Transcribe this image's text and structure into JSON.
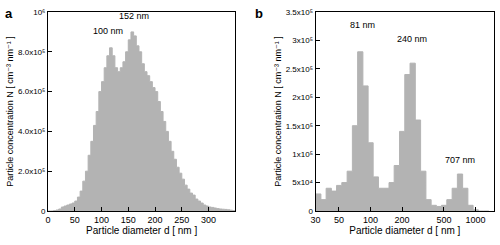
{
  "chart_data": [
    {
      "type": "histogram",
      "title": "a",
      "x_label": "Particle diameter d [ nm ]",
      "y_label": "Particle concentration N [ cm⁻³ nm⁻¹ ]",
      "color": "#b3b3b3",
      "bins": [
        0,
        5,
        10,
        15,
        20,
        25,
        30,
        35,
        40,
        45,
        50,
        55,
        60,
        65,
        70,
        75,
        80,
        85,
        90,
        95,
        100,
        105,
        110,
        115,
        120,
        125,
        130,
        135,
        140,
        145,
        150,
        155,
        160,
        165,
        170,
        175,
        180,
        185,
        190,
        195,
        200,
        205,
        210,
        215,
        220,
        225,
        230,
        235,
        240,
        245,
        250,
        255,
        260,
        265,
        270,
        275,
        280,
        285,
        290,
        295,
        300,
        305,
        310,
        315,
        320,
        325,
        330,
        335,
        340,
        345,
        350
      ],
      "counts": [
        0,
        0,
        2000,
        5000,
        10000,
        20000,
        25000,
        30000,
        35000,
        40000,
        50000,
        70000,
        100000,
        150000,
        200000,
        280000,
        350000,
        430000,
        500000,
        600000,
        650000,
        720000,
        780000,
        820000,
        780000,
        720000,
        700000,
        720000,
        750000,
        800000,
        860000,
        900000,
        880000,
        830000,
        800000,
        740000,
        700000,
        680000,
        650000,
        620000,
        600000,
        550000,
        500000,
        450000,
        400000,
        350000,
        300000,
        260000,
        220000,
        190000,
        160000,
        130000,
        110000,
        90000,
        80000,
        60000,
        50000,
        40000,
        30000,
        25000,
        20000,
        18000,
        15000,
        12000,
        10000,
        9000,
        8000,
        6000,
        4000,
        2000
      ],
      "xlim": [
        0,
        350
      ],
      "xticks": [
        0,
        50,
        100,
        150,
        200,
        250,
        300
      ],
      "ylim": [
        0,
        1000000
      ],
      "yticks": [
        0,
        {
          "value": 200000,
          "label": "2.0x10⁵"
        },
        {
          "value": 400000,
          "label": "4.0x10⁵"
        },
        {
          "value": 600000,
          "label": "6.0x10⁵"
        },
        {
          "value": 800000,
          "label": "8.0x10⁵"
        },
        {
          "value": 1000000,
          "label": "10⁶"
        }
      ],
      "grid": false,
      "annotations": [
        {
          "text": "100 nm",
          "x": 112,
          "y": 870000
        },
        {
          "text": "152 nm",
          "x": 160,
          "y": 945000
        }
      ]
    },
    {
      "type": "histogram",
      "title": "b",
      "x_label": "Particle diameter d [ nm ]",
      "y_label": "Particle concentration N [ cm⁻³ nm⁻¹ ]",
      "color": "#b3b3b3",
      "log": "x",
      "bins": [
        30,
        33.7,
        37.8,
        42.4,
        47.5,
        53.3,
        59.9,
        67.2,
        75.4,
        84.6,
        94.9,
        106,
        119,
        134,
        150,
        168,
        189,
        212,
        238,
        267,
        300,
        337,
        378,
        424,
        475,
        533,
        599,
        672,
        754,
        846,
        949,
        1065,
        1195,
        1341
      ],
      "counts": [
        30000,
        20000,
        40000,
        35000,
        45000,
        50000,
        70000,
        150000,
        280000,
        220000,
        120000,
        60000,
        40000,
        40000,
        50000,
        80000,
        140000,
        240000,
        260000,
        160000,
        70000,
        20000,
        10000,
        8000,
        10000,
        20000,
        40000,
        65000,
        40000,
        10000,
        2000,
        0,
        0
      ],
      "xlim": [
        30,
        1500
      ],
      "xticks": [
        30,
        50,
        100,
        200,
        500,
        1000
      ],
      "ylim": [
        0,
        350000
      ],
      "yticks": [
        0,
        {
          "value": 50000,
          "label": "5x10⁴"
        },
        {
          "value": 100000,
          "label": "1x10⁵"
        },
        {
          "value": 150000,
          "label": "1.5x10⁵"
        },
        {
          "value": 200000,
          "label": "2x10⁵"
        },
        {
          "value": 250000,
          "label": "2.5x10⁵"
        },
        {
          "value": 300000,
          "label": "3x10⁵"
        },
        {
          "value": 350000,
          "label": "3.5x10⁵"
        }
      ],
      "grid": false,
      "annotations": [
        {
          "text": "81 nm",
          "x": 84,
          "y": 315000
        },
        {
          "text": "240 nm",
          "x": 250,
          "y": 290000
        },
        {
          "text": "707 nm",
          "x": 707,
          "y": 78000
        }
      ]
    }
  ]
}
